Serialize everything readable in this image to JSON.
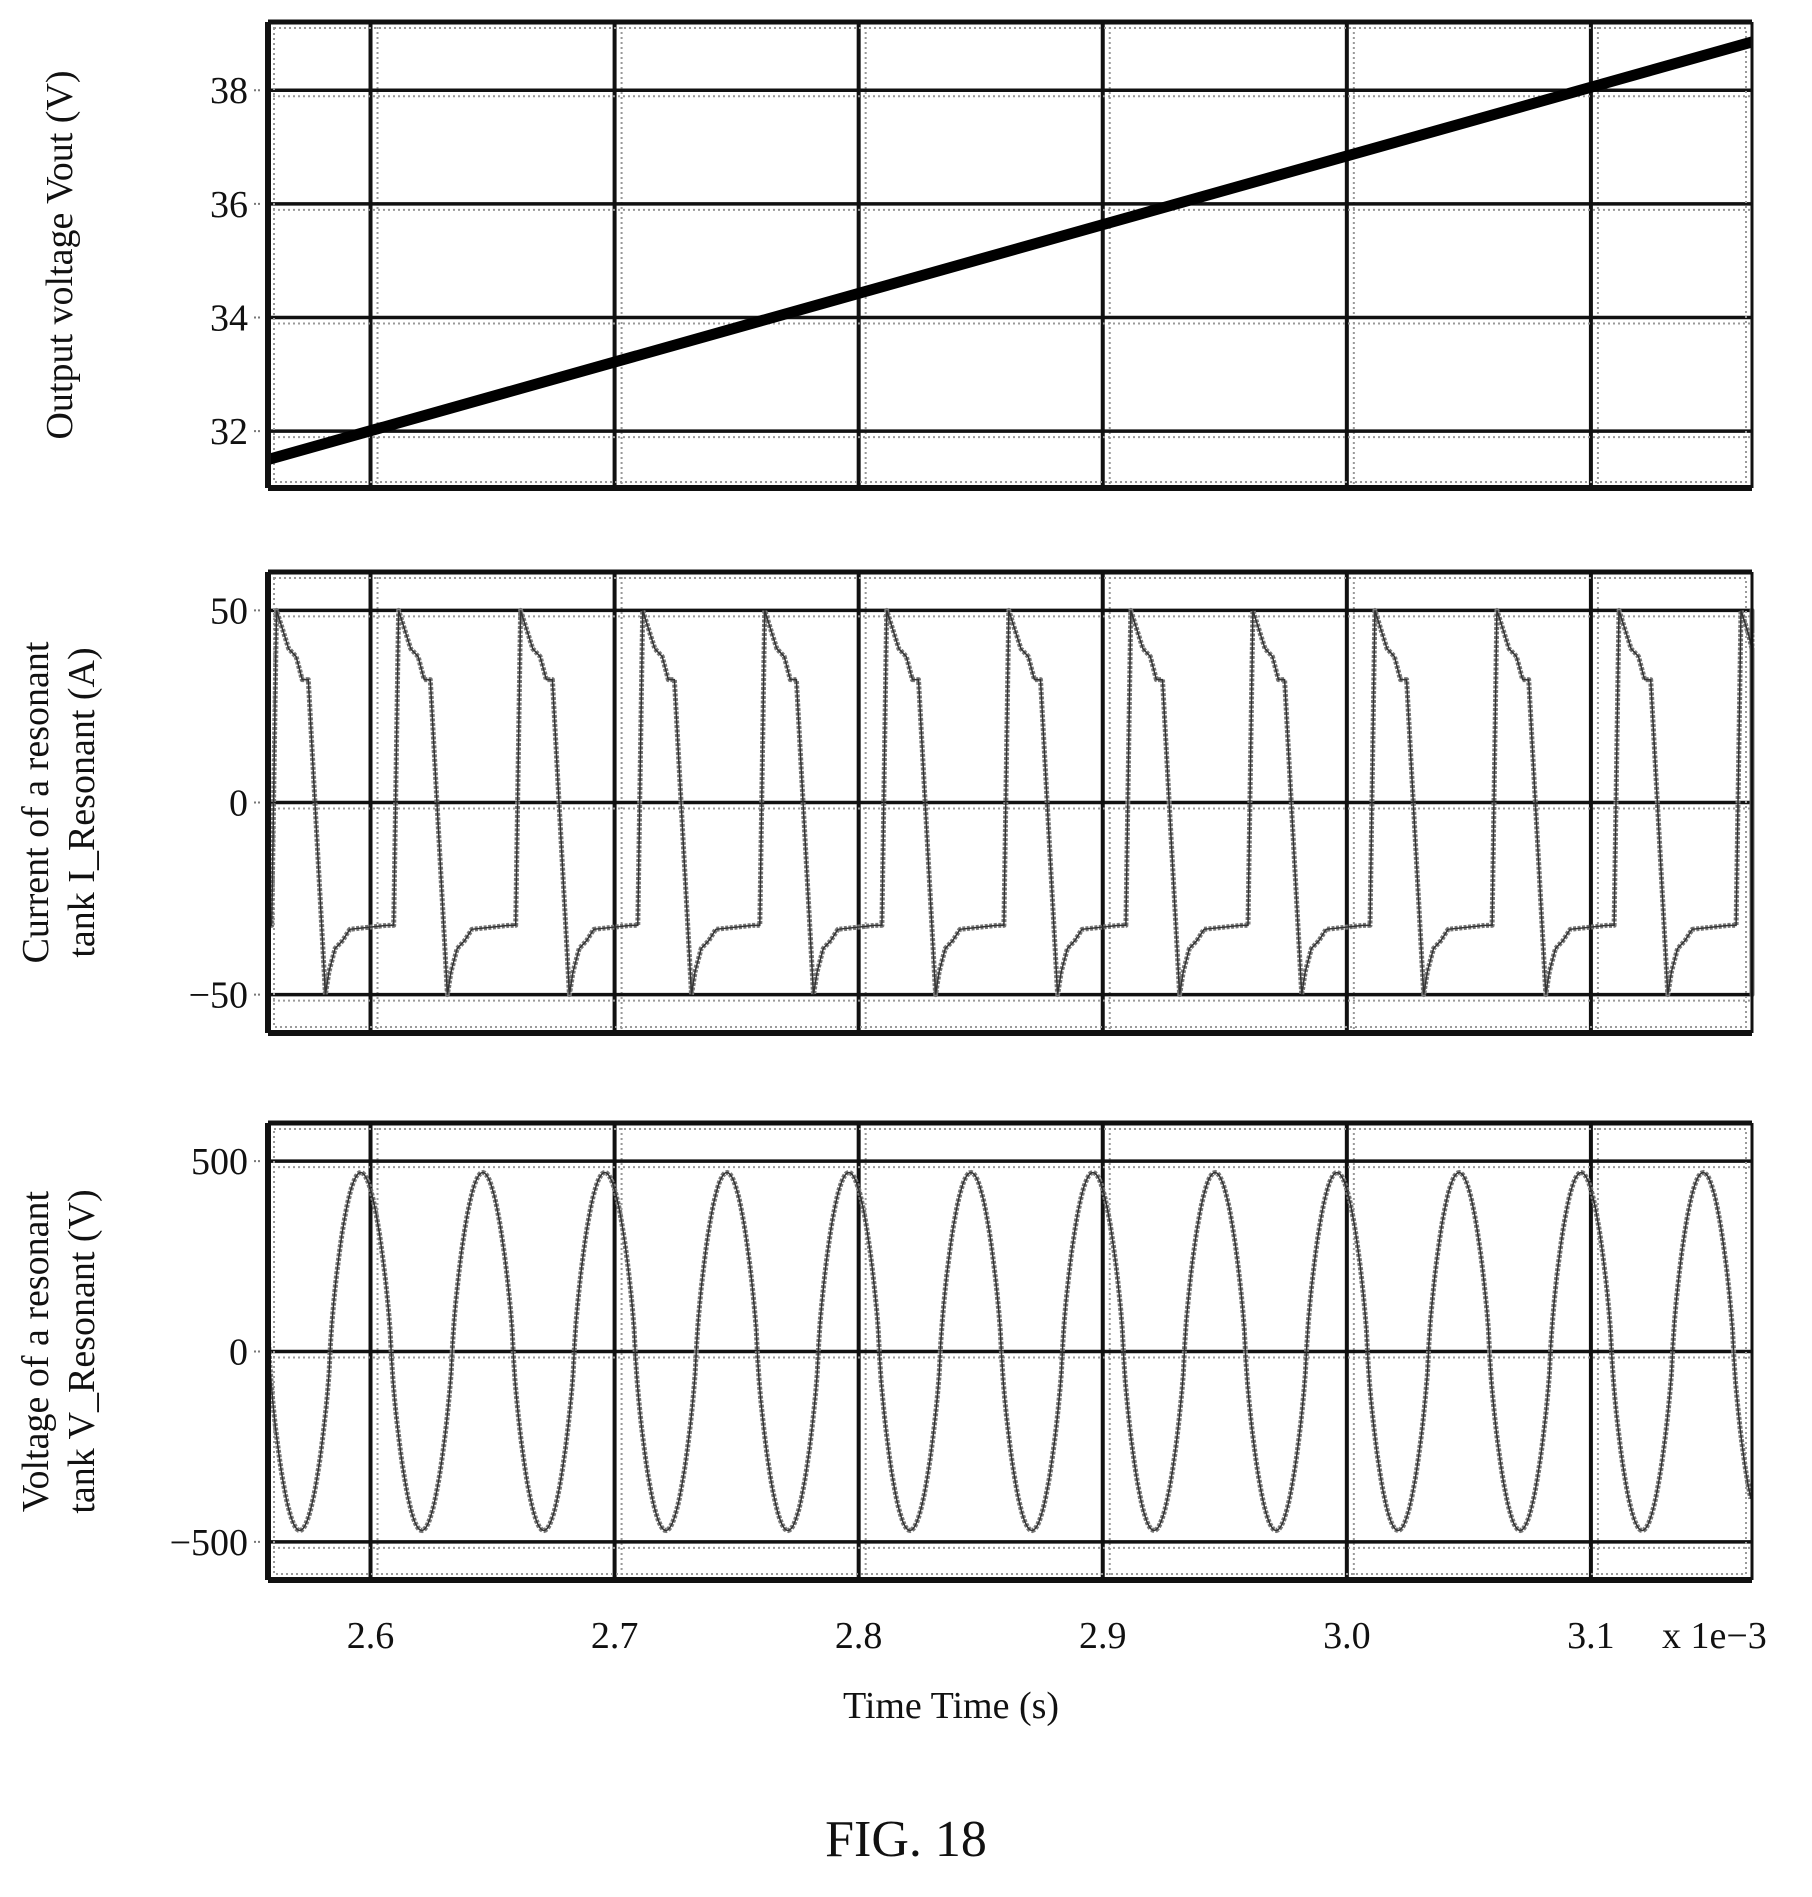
{
  "chart_data": [
    {
      "type": "line",
      "ylabel": "Output voltage Vout (V)",
      "ylim": [
        31.0,
        39.2
      ],
      "xlim": [
        2.558,
        3.166
      ],
      "y_ticks": [
        32,
        34,
        36,
        38
      ],
      "y_tick_labels": [
        "32",
        "34",
        "36",
        "38"
      ],
      "grid": true,
      "series": [
        {
          "x": [
            2.558,
            3.166
          ],
          "y": [
            31.5,
            38.85
          ]
        }
      ]
    },
    {
      "type": "line",
      "ylabel": "Current of a resonant tank I_Resonant (A)",
      "ylim": [
        -60,
        60
      ],
      "xlim": [
        2.558,
        3.166
      ],
      "y_ticks": [
        -50,
        0,
        50
      ],
      "y_tick_labels": [
        "−50",
        "0",
        "50"
      ],
      "grid": true,
      "waveform": {
        "period": 0.05,
        "phase_start": 2.5565,
        "peak": 50,
        "plateau_high": 32,
        "plateau_low": -32,
        "trough": -50
      }
    },
    {
      "type": "line",
      "ylabel": "Voltage of a resonant tank V_Resonant (V)",
      "ylim": [
        -600,
        600
      ],
      "xlim": [
        2.558,
        3.166
      ],
      "y_ticks": [
        -500,
        0,
        500
      ],
      "y_tick_labels": [
        "−500",
        "0",
        "500"
      ],
      "grid": true,
      "waveform": {
        "period": 0.05,
        "phase_start": 2.571,
        "amplitude": 470
      }
    }
  ],
  "x_axis": {
    "ticks": [
      2.6,
      2.7,
      2.8,
      2.9,
      3.0,
      3.1
    ],
    "tick_labels": [
      "2.6",
      "2.7",
      "2.8",
      "2.9",
      "3.0",
      "3.1"
    ],
    "multiplier": "x 1e−3",
    "label": "Time Time (s)"
  },
  "caption": "FIG. 18"
}
